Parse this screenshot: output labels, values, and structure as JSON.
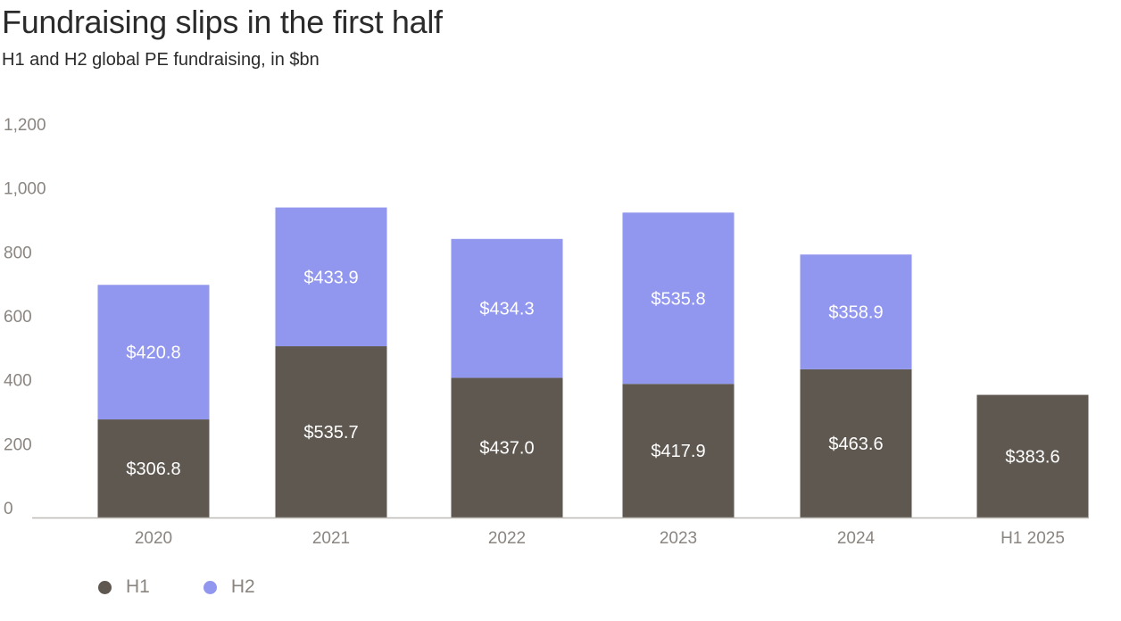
{
  "chart_data": {
    "type": "bar",
    "stacked": true,
    "title": "Fundraising slips in the first half",
    "subtitle": "H1 and H2 global PE fundraising, in $bn",
    "categories": [
      "2020",
      "2021",
      "2022",
      "2023",
      "2024",
      "H1 2025"
    ],
    "series": [
      {
        "name": "H1",
        "color": "#5f5850",
        "values": [
          306.8,
          535.7,
          437.0,
          417.9,
          463.6,
          383.6
        ],
        "labels": [
          "$306.8",
          "$535.7",
          "$437.0",
          "$417.9",
          "$463.6",
          "$383.6"
        ]
      },
      {
        "name": "H2",
        "color": "#9196ee",
        "values": [
          420.8,
          433.9,
          434.3,
          535.8,
          358.9,
          null
        ],
        "labels": [
          "$420.8",
          "$433.9",
          "$434.3",
          "$535.8",
          "$358.9",
          null
        ]
      }
    ],
    "ylim": [
      0,
      1200
    ],
    "yticks": [
      "0",
      "200",
      "400",
      "600",
      "800",
      "1,000",
      "1,200"
    ],
    "grid": false,
    "legend_position": "bottom-left"
  },
  "colors": {
    "tick_label": "#8a8580",
    "axis_line": "#bdbab5",
    "bar_label": "#ffffff"
  }
}
